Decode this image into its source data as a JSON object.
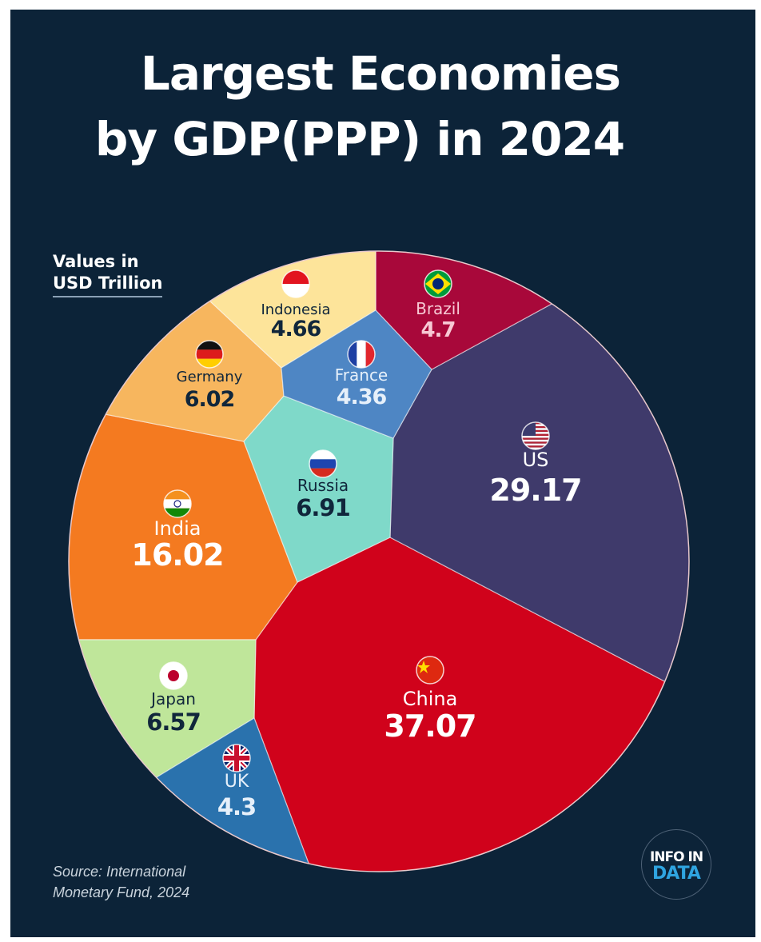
{
  "title_line1": "Largest Economies",
  "title_line2": "by GDP(PPP) in 2024",
  "units_line1": "Values in",
  "units_line2": "USD Trillion",
  "source_line1": "Source: International",
  "source_line2": "Monetary Fund, 2024",
  "logo_line1": "INFO IN",
  "logo_line2": "DATA",
  "chart_data": {
    "type": "treemap",
    "layout": "voronoi-circle",
    "title": "Largest Economies by GDP(PPP) in 2024",
    "unit": "USD Trillion",
    "items": [
      {
        "name": "China",
        "value": 37.07,
        "label": "37.07",
        "color": "#d0021b",
        "flag": "china-flag"
      },
      {
        "name": "US",
        "value": 29.17,
        "label": "29.17",
        "color": "#3f3a6b",
        "flag": "us-flag"
      },
      {
        "name": "India",
        "value": 16.02,
        "label": "16.02",
        "color": "#f47a20",
        "flag": "india-flag"
      },
      {
        "name": "Russia",
        "value": 6.91,
        "label": "6.91",
        "color": "#7fd9c9",
        "flag": "russia-flag"
      },
      {
        "name": "Japan",
        "value": 6.57,
        "label": "6.57",
        "color": "#bfe69a",
        "flag": "japan-flag"
      },
      {
        "name": "Germany",
        "value": 6.02,
        "label": "6.02",
        "color": "#f7b65e",
        "flag": "germany-flag"
      },
      {
        "name": "Brazil",
        "value": 4.7,
        "label": "4.7",
        "color": "#a8083a",
        "flag": "brazil-flag"
      },
      {
        "name": "Indonesia",
        "value": 4.66,
        "label": "4.66",
        "color": "#fde49a",
        "flag": "indonesia-flag"
      },
      {
        "name": "France",
        "value": 4.36,
        "label": "4.36",
        "color": "#4e86c4",
        "flag": "france-flag"
      },
      {
        "name": "UK",
        "value": 4.3,
        "label": "4.3",
        "color": "#2a72ad",
        "flag": "uk-flag"
      }
    ]
  }
}
